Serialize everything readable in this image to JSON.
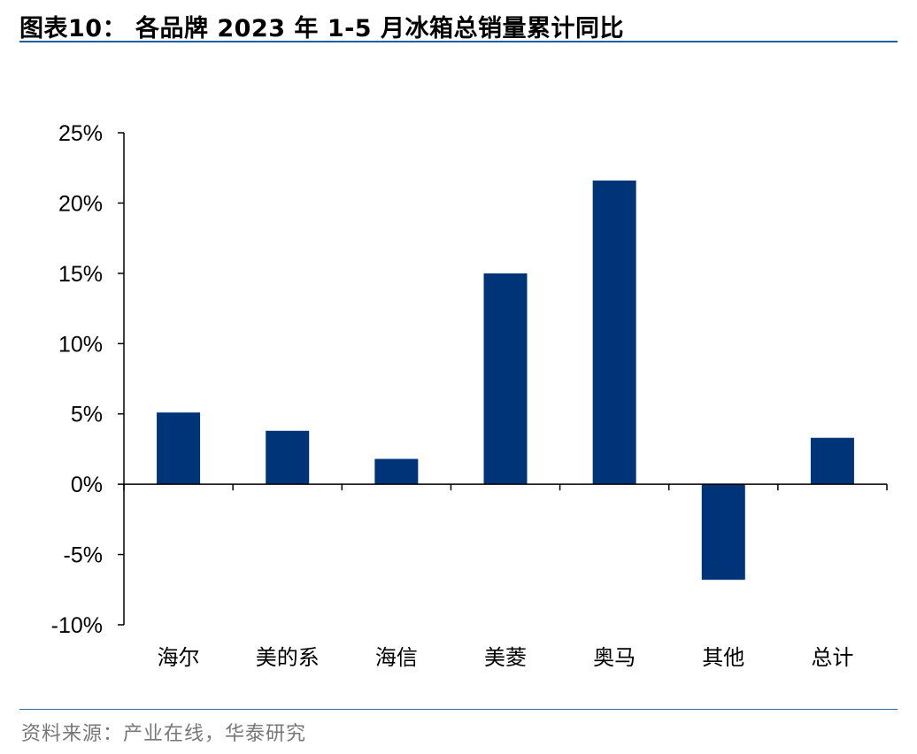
{
  "header": {
    "title": "图表10：  各品牌 2023 年 1-5 月冰箱总销量累计同比"
  },
  "footer": {
    "source": "资料来源：产业在线，华泰研究"
  },
  "colors": {
    "bar": "#003478",
    "rule": "#1f5f9f"
  },
  "chart_data": {
    "type": "bar",
    "title": "各品牌 2023 年 1-5 月冰箱总销量累计同比",
    "categories": [
      "海尔",
      "美的系",
      "海信",
      "美菱",
      "奥马",
      "其他",
      "总计"
    ],
    "values": [
      5.1,
      3.8,
      1.8,
      15.0,
      21.6,
      -6.8,
      3.3
    ],
    "unit": "%",
    "ylim": [
      -10,
      25
    ],
    "yticks": [
      25,
      20,
      15,
      10,
      5,
      0,
      -5,
      -10
    ],
    "ytick_labels": [
      "25%",
      "20%",
      "15%",
      "10%",
      "5%",
      "0%",
      "-5%",
      "-10%"
    ],
    "grid": false,
    "legend": "none"
  }
}
